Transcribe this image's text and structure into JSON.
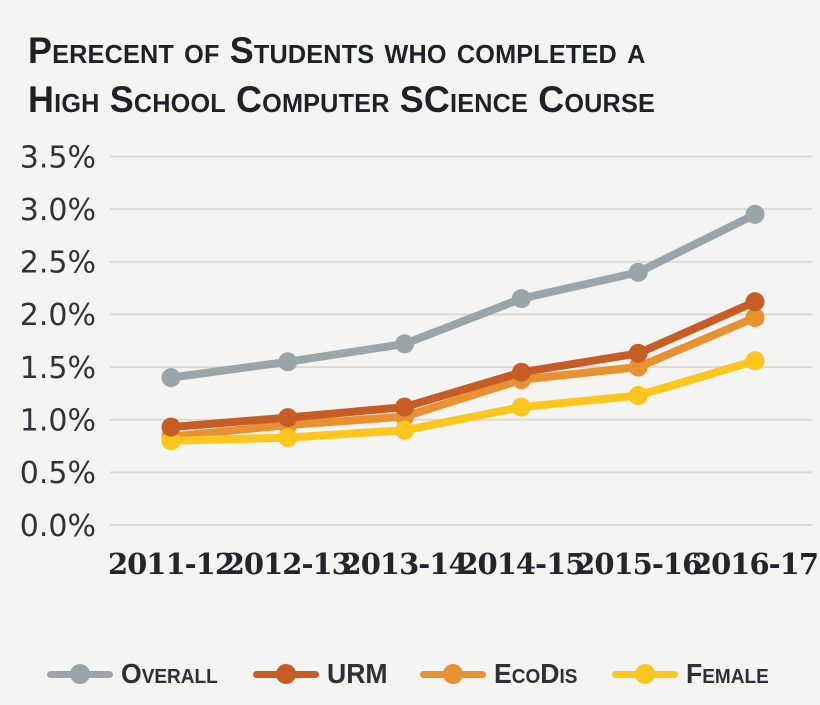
{
  "title": {
    "lines": [
      "Perecent of Students who completed a",
      "High School Computer SCience Course"
    ]
  },
  "colors": {
    "background": "#f4f4f2",
    "gridline": "#d9d9d6",
    "title_text": "#1e2227",
    "axis_text": "#2e3338"
  },
  "chart_data": {
    "type": "line",
    "title": "Perecent of Students who completed a High School Computer SCience Course",
    "categories": [
      "2011-12",
      "2012-13",
      "2013-14",
      "2014-15",
      "2015-16",
      "2016-17"
    ],
    "series": [
      {
        "name": "Overall",
        "color": "#9aa5a9",
        "values": [
          1.4,
          1.55,
          1.72,
          2.15,
          2.4,
          2.95
        ]
      },
      {
        "name": "URM",
        "color": "#c75d24",
        "values": [
          0.93,
          1.02,
          1.12,
          1.45,
          1.63,
          2.12
        ]
      },
      {
        "name": "EcoDis",
        "color": "#e89130",
        "values": [
          0.84,
          0.95,
          1.03,
          1.38,
          1.5,
          1.97
        ]
      },
      {
        "name": "Female",
        "color": "#fcc61d",
        "values": [
          0.8,
          0.83,
          0.9,
          1.12,
          1.23,
          1.56
        ]
      }
    ],
    "xlabel": "",
    "ylabel": "",
    "ylim": [
      0,
      3.5
    ],
    "ytick_step": 0.5,
    "ytick_labels": [
      "0.0%",
      "0.5%",
      "1.0%",
      "1.5%",
      "2.0%",
      "2.5%",
      "3.0%",
      "3.5%"
    ],
    "grid": "horizontal-only",
    "legend_position": "bottom"
  }
}
